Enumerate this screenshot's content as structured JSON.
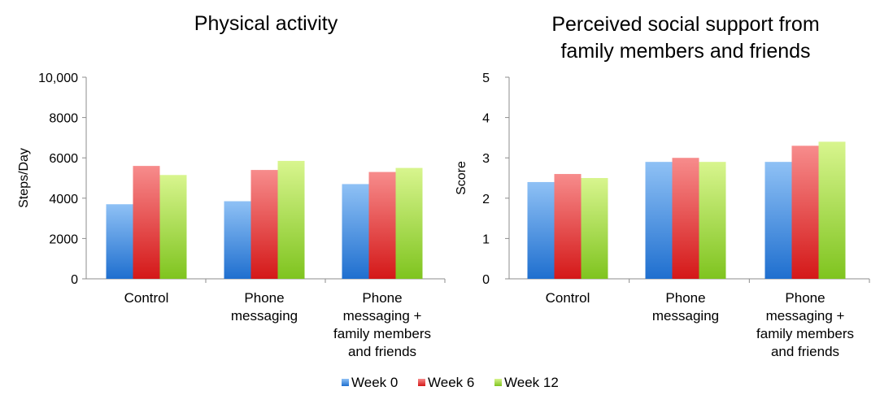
{
  "colors": {
    "week0_top": "#8fc1f5",
    "week0_bottom": "#1f6fcf",
    "week6_top": "#f78c8c",
    "week6_bottom": "#d41818",
    "week12_top": "#d8f58e",
    "week12_bottom": "#7fc41f"
  },
  "legend": [
    {
      "label": "Week 0",
      "key": "week0"
    },
    {
      "label": "Week 6",
      "key": "week6"
    },
    {
      "label": "Week 12",
      "key": "week12"
    }
  ],
  "chart_data": [
    {
      "type": "bar",
      "title_lines": [
        "Physical activity"
      ],
      "ylabel": "Steps/Day",
      "ylim": [
        0,
        10000
      ],
      "yticks": [
        0,
        2000,
        4000,
        6000,
        8000,
        10000
      ],
      "ytick_labels": [
        "0",
        "2000",
        "4000",
        "6000",
        "8000",
        "10,000"
      ],
      "categories": [
        [
          "Control"
        ],
        [
          "Phone",
          "messaging"
        ],
        [
          "Phone",
          "messaging +",
          "family members",
          "and friends"
        ]
      ],
      "series": [
        {
          "name": "Week 0",
          "key": "week0",
          "values": [
            3700,
            3850,
            4700
          ]
        },
        {
          "name": "Week 6",
          "key": "week6",
          "values": [
            5600,
            5400,
            5300
          ]
        },
        {
          "name": "Week 12",
          "key": "week12",
          "values": [
            5150,
            5850,
            5500
          ]
        }
      ]
    },
    {
      "type": "bar",
      "title_lines": [
        "Perceived social support from",
        "family members and friends"
      ],
      "ylabel": "Score",
      "ylim": [
        0,
        5
      ],
      "yticks": [
        0,
        1,
        2,
        3,
        4,
        5
      ],
      "ytick_labels": [
        "0",
        "1",
        "2",
        "3",
        "4",
        "5"
      ],
      "categories": [
        [
          "Control"
        ],
        [
          "Phone",
          "messaging"
        ],
        [
          "Phone",
          "messaging +",
          "family members",
          "and friends"
        ]
      ],
      "series": [
        {
          "name": "Week 0",
          "key": "week0",
          "values": [
            2.4,
            2.9,
            2.9
          ]
        },
        {
          "name": "Week 6",
          "key": "week6",
          "values": [
            2.6,
            3.0,
            3.3
          ]
        },
        {
          "name": "Week 12",
          "key": "week12",
          "values": [
            2.5,
            2.9,
            3.4
          ]
        }
      ]
    }
  ]
}
